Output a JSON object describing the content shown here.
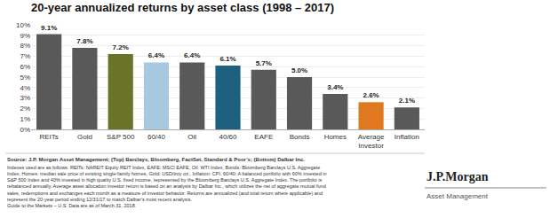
{
  "chart_data": {
    "type": "bar",
    "title": "20-year annualized returns by asset class (1998 – 2017)",
    "categories": [
      "REITs",
      "Gold",
      "S&P 500",
      "60/40",
      "Oil",
      "40/60",
      "EAFE",
      "Bonds",
      "Homes",
      "Average\nInvestor",
      "Inflation"
    ],
    "values": [
      9.1,
      7.8,
      7.2,
      6.4,
      6.4,
      6.1,
      5.7,
      5.0,
      3.4,
      2.6,
      2.1
    ],
    "value_labels": [
      "9.1%",
      "7.8%",
      "7.2%",
      "6.4%",
      "6.4%",
      "6.1%",
      "5.7%",
      "5.0%",
      "3.4%",
      "2.6%",
      "2.1%"
    ],
    "data_labels": true,
    "colors": [
      "#595959",
      "#595959",
      "#6b7229",
      "#a8c8e0",
      "#595959",
      "#1e6080",
      "#595959",
      "#595959",
      "#595959",
      "#e07820",
      "#595959"
    ],
    "ylim": [
      0,
      10
    ],
    "yticks": [
      {
        "value": 0,
        "label": "0%"
      },
      {
        "value": 1,
        "label": "1%"
      },
      {
        "value": 2,
        "label": "2%"
      },
      {
        "value": 3,
        "label": "3%"
      },
      {
        "value": 4,
        "label": "4%"
      },
      {
        "value": 5,
        "label": "5%"
      },
      {
        "value": 6,
        "label": "6%"
      },
      {
        "value": 7,
        "label": "7%"
      },
      {
        "value": 8,
        "label": "8%"
      },
      {
        "value": 9,
        "label": "9%"
      },
      {
        "value": 10,
        "label": "10%"
      }
    ],
    "grid": true,
    "annotations": [
      "Source: J.P. Morgan Asset Management; (Top) Barclays, Bloomberg, FactSet, Standard & Poor’s; (Bottom) Dalbar Inc.",
      "Indexes used are as follows: REITs: NAREIT Equity REIT Index, EAFE: MSCI EAFE, Oil: WTI Index, Bonds: Bloomberg Barclays U.S. Aggregate\nIndex, Homes: median sale price of existing single-family homes, Gold: USD/troy oz., Inflation: CPI. 60/40: A balanced portfolio with 60% invested in\nS&P 500 Index and 40% invested in high quality U.S. fixed income, represented by the Bloomberg Barclays U.S. Aggregate Index. The portfolio is\nrebalanced annually. Average asset allocation investor return is based on an analysis by Dalbar Inc., which utilizes the net of aggregate mutual fund\nsales, redemptions and exchanges each month as a measure of investor behavior. Returns are annualized (and total return where applicable) and\nrepresent the 20-year period ending 12/31/17 to match Dalbar’s most recent analysis.\nGuide to the Markets – U.S. Data are as of March 31, 2018.",
      "J.P.Morgan",
      "Asset Management"
    ]
  }
}
